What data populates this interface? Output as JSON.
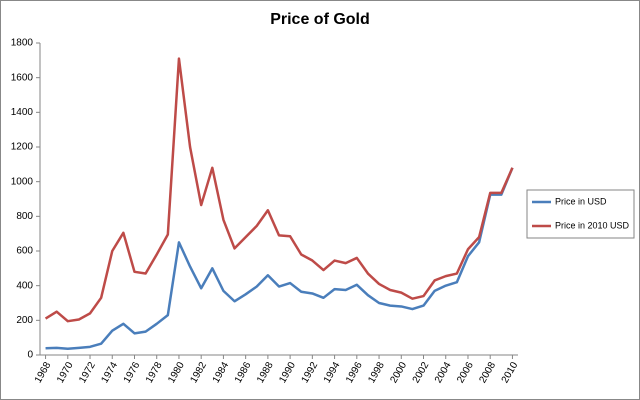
{
  "chart_data": {
    "type": "line",
    "title": "Price of Gold",
    "x": [
      1968,
      1969,
      1970,
      1971,
      1972,
      1973,
      1974,
      1975,
      1976,
      1977,
      1978,
      1979,
      1980,
      1981,
      1982,
      1983,
      1984,
      1985,
      1986,
      1987,
      1988,
      1989,
      1990,
      1991,
      1992,
      1993,
      1994,
      1995,
      1996,
      1997,
      1998,
      1999,
      2000,
      2001,
      2002,
      2003,
      2004,
      2005,
      2006,
      2007,
      2008,
      2009,
      2010
    ],
    "series": [
      {
        "name": "Price in USD",
        "color": "#4a7ebb",
        "values": [
          39,
          41,
          36,
          41,
          47,
          65,
          140,
          180,
          125,
          135,
          180,
          230,
          650,
          510,
          385,
          500,
          370,
          310,
          350,
          395,
          460,
          395,
          415,
          365,
          355,
          330,
          380,
          375,
          405,
          345,
          300,
          285,
          280,
          265,
          285,
          370,
          400,
          420,
          570,
          650,
          925,
          925,
          1080
        ]
      },
      {
        "name": "Price in 2010 USD",
        "color": "#be4b48",
        "values": [
          210,
          250,
          195,
          205,
          240,
          330,
          600,
          705,
          480,
          470,
          580,
          695,
          1710,
          1200,
          865,
          1080,
          780,
          615,
          680,
          745,
          835,
          690,
          685,
          580,
          545,
          490,
          545,
          530,
          560,
          470,
          410,
          375,
          360,
          325,
          340,
          430,
          455,
          470,
          610,
          680,
          935,
          935,
          1080
        ]
      }
    ],
    "xlim": [
      1967.5,
      2010.5
    ],
    "xticks": [
      1968,
      1970,
      1972,
      1974,
      1976,
      1978,
      1980,
      1982,
      1984,
      1986,
      1988,
      1990,
      1992,
      1994,
      1996,
      1998,
      2000,
      2002,
      2004,
      2006,
      2008,
      2010
    ],
    "ylim": [
      0,
      1800
    ],
    "yticks": [
      0,
      200,
      400,
      600,
      800,
      1000,
      1200,
      1400,
      1600,
      1800
    ],
    "grid": false,
    "legend": "right"
  }
}
